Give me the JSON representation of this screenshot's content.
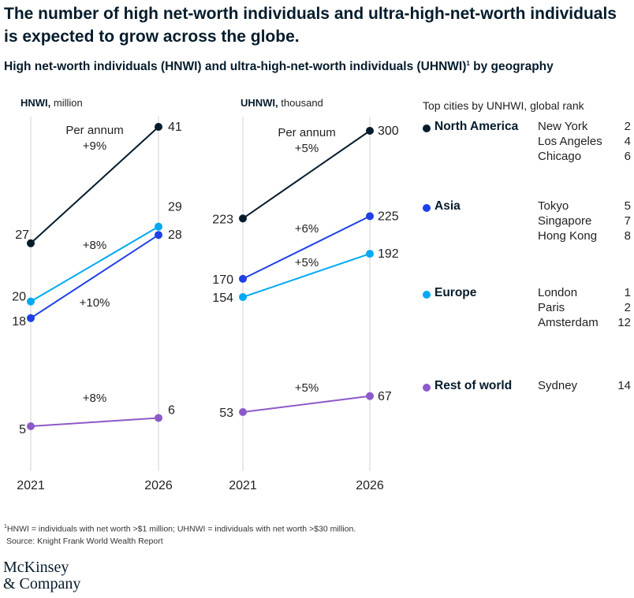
{
  "title": "The number of high net-worth individuals and ultra-high-net-worth individuals is expected to grow across the globe.",
  "subtitle": "High net-worth individuals (HNWI) and ultra-high-net-worth individuals (UHNWI)",
  "subtitle_sup": "1",
  "subtitle_suffix": " by geography",
  "colors": {
    "north_america": "#051c2c",
    "asia": "#1f40e6",
    "europe": "#00a9f4",
    "rest_of_world": "#8c5ac8"
  },
  "chart_data": [
    {
      "type": "line",
      "unit_bold": "HNWI,",
      "unit_rest": " million",
      "x": [
        "2021",
        "2026"
      ],
      "series": [
        {
          "name": "North America",
          "color": "#051c2c",
          "values": [
            27,
            41
          ],
          "growth": "+9%",
          "growth_prefix": "Per annum"
        },
        {
          "name": "Asia",
          "color": "#1f40e6",
          "values": [
            18,
            28
          ],
          "growth": "+10%"
        },
        {
          "name": "Europe",
          "color": "#00a9f4",
          "values": [
            20,
            29
          ],
          "growth": "+8%"
        },
        {
          "name": "Rest of world",
          "color": "#8c5ac8",
          "values": [
            5,
            6
          ],
          "growth": "+8%"
        }
      ]
    },
    {
      "type": "line",
      "unit_bold": "UHNWI,",
      "unit_rest": " thousand",
      "x": [
        "2021",
        "2026"
      ],
      "series": [
        {
          "name": "North America",
          "color": "#051c2c",
          "values": [
            223,
            300
          ],
          "growth": "+5%",
          "growth_prefix": "Per annum"
        },
        {
          "name": "Asia",
          "color": "#1f40e6",
          "values": [
            170,
            225
          ],
          "growth": "+6%"
        },
        {
          "name": "Europe",
          "color": "#00a9f4",
          "values": [
            154,
            192
          ],
          "growth": "+5%"
        },
        {
          "name": "Rest of world",
          "color": "#8c5ac8",
          "values": [
            53,
            67
          ],
          "growth": "+5%"
        }
      ]
    }
  ],
  "legend": {
    "heading": "Top cities by UNHWI, global rank",
    "regions": [
      {
        "name": "North America",
        "color": "#051c2c",
        "cities": [
          {
            "name": "New York",
            "rank": "2"
          },
          {
            "name": "Los Angeles",
            "rank": "4"
          },
          {
            "name": "Chicago",
            "rank": "6"
          }
        ]
      },
      {
        "name": "Asia",
        "color": "#1f40e6",
        "cities": [
          {
            "name": "Tokyo",
            "rank": "5"
          },
          {
            "name": "Singapore",
            "rank": "7"
          },
          {
            "name": "Hong Kong",
            "rank": "8"
          }
        ]
      },
      {
        "name": "Europe",
        "color": "#00a9f4",
        "cities": [
          {
            "name": "London",
            "rank": "1"
          },
          {
            "name": "Paris",
            "rank": "2"
          },
          {
            "name": "Amsterdam",
            "rank": "12"
          }
        ]
      },
      {
        "name": "Rest of world",
        "color": "#8c5ac8",
        "cities": [
          {
            "name": "Sydney",
            "rank": "14"
          }
        ]
      }
    ]
  },
  "footnote": {
    "sup": "1",
    "line1": "HNWI = individuals with net worth >$1 million; UHNWI = individuals with net worth >$30 million.",
    "line2": "Source: Knight Frank World Wealth Report"
  },
  "logo": {
    "line1": "McKinsey",
    "line2": "& Company"
  }
}
